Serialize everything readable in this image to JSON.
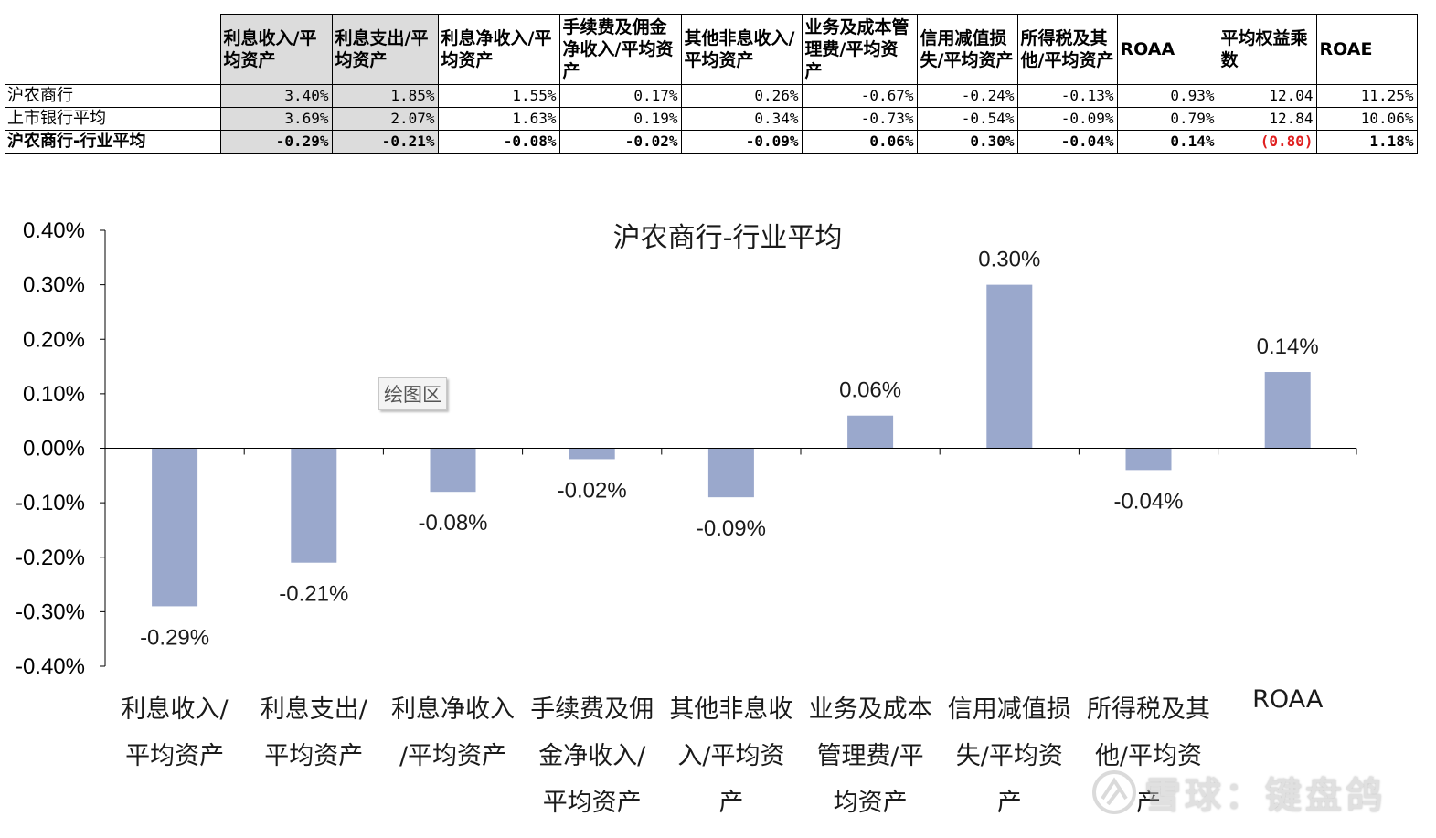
{
  "table": {
    "headers": [
      "利息收入/平均资产",
      "利息支出/平均资产",
      "利息净收入/平均资产",
      "手续费及佣金净收入/平均资产",
      "其他非息收入/平均资产",
      "业务及成本管理费/平均资产",
      "信用减值损失/平均资产",
      "所得税及其他/平均资产",
      "ROAA",
      "平均权益乘数",
      "ROAE"
    ],
    "rows": [
      {
        "label": "沪农商行",
        "values": [
          "3.40%",
          "1.85%",
          "1.55%",
          "0.17%",
          "0.26%",
          "-0.67%",
          "-0.24%",
          "-0.13%",
          "0.93%",
          "12.04",
          "11.25%"
        ]
      },
      {
        "label": "上市银行平均",
        "values": [
          "3.69%",
          "2.07%",
          "1.63%",
          "0.19%",
          "0.34%",
          "-0.73%",
          "-0.54%",
          "-0.09%",
          "0.79%",
          "12.84",
          "10.06%"
        ]
      },
      {
        "label": "沪农商行-行业平均",
        "values": [
          "-0.29%",
          "-0.21%",
          "-0.08%",
          "-0.02%",
          "-0.09%",
          "0.06%",
          "0.30%",
          "-0.04%",
          "0.14%",
          "(0.80)",
          "1.18%"
        ]
      }
    ],
    "shade_color": "#dcdcdc",
    "negative_red_color": "#e02020"
  },
  "chart_data": {
    "type": "bar",
    "title": "沪农商行-行业平均",
    "categories": [
      "利息收入/平均资产",
      "利息支出/平均资产",
      "利息净收入/平均资产",
      "手续费及佣金净收入/平均资产",
      "其他非息收入/平均资产",
      "业务及成本管理费/平均资产",
      "信用减值损失/平均资产",
      "所得税及其他/平均资产",
      "ROAA"
    ],
    "category_label_lines": [
      [
        "利息收入/",
        "平均资产"
      ],
      [
        "利息支出/",
        "平均资产"
      ],
      [
        "利息净收入",
        "/平均资产"
      ],
      [
        "手续费及佣",
        "金净收入/",
        "平均资产"
      ],
      [
        "其他非息收",
        "入/平均资",
        "产"
      ],
      [
        "业务及成本",
        "管理费/平",
        "均资产"
      ],
      [
        "信用减值损",
        "失/平均资",
        "产"
      ],
      [
        "所得税及其",
        "他/平均资",
        "产"
      ],
      [
        "ROAA"
      ]
    ],
    "values": [
      -0.29,
      -0.21,
      -0.08,
      -0.02,
      -0.09,
      0.06,
      0.3,
      -0.04,
      0.14
    ],
    "data_labels": [
      "-0.29%",
      "-0.21%",
      "-0.08%",
      "-0.02%",
      "-0.09%",
      "0.06%",
      "0.30%",
      "-0.04%",
      "0.14%"
    ],
    "ylim": [
      -0.4,
      0.4
    ],
    "y_ticks": [
      "0.40%",
      "0.30%",
      "0.20%",
      "0.10%",
      "0.00%",
      "-0.10%",
      "-0.20%",
      "-0.30%",
      "-0.40%"
    ],
    "y_tick_values": [
      0.4,
      0.3,
      0.2,
      0.1,
      0.0,
      -0.1,
      -0.2,
      -0.3,
      -0.4
    ],
    "grid": false,
    "legend": "none",
    "bar_color": "#9aa8cc"
  },
  "plot_area_tag": "绘图区",
  "watermark": "雪球：键盘鸽",
  "watermark_icon": "snowball-logo-icon"
}
